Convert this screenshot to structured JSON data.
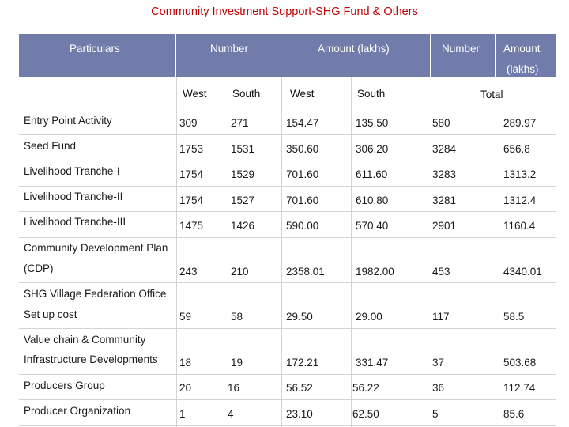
{
  "title": "Community Investment Support-SHG Fund & Others",
  "header": {
    "particulars": "Particulars",
    "number": "Number",
    "amount": "Amount (lakhs)",
    "total_number": "Number",
    "total_amount_1": "Amount",
    "total_amount_2": "(lakhs)"
  },
  "subheader": {
    "west_1": "West",
    "south_1": "South",
    "west_2": "West",
    "south_2": "South",
    "total": "Total"
  },
  "rows": [
    {
      "label1": "Entry Point Activity",
      "label2": "",
      "num_west": "309",
      "num_south": "271",
      "amt_west": "154.47",
      "amt_south": "135.50",
      "total_num": "580",
      "total_amt": "289.97"
    },
    {
      "label1": "Seed Fund",
      "label2": "",
      "num_west": "1753",
      "num_south": "1531",
      "amt_west": "350.60",
      "amt_south": "306.20",
      "total_num": "3284",
      "total_amt": "656.8"
    },
    {
      "label1": "Livelihood Tranche-I",
      "label2": "",
      "num_west": "1754",
      "num_south": "1529",
      "amt_west": "701.60",
      "amt_south": "611.60",
      "total_num": "3283",
      "total_amt": "1313.2"
    },
    {
      "label1": "Livelihood Tranche-II",
      "label2": "",
      "num_west": "1754",
      "num_south": "1527",
      "amt_west": "701.60",
      "amt_south": "610.80",
      "total_num": "3281",
      "total_amt": "1312.4"
    },
    {
      "label1": "Livelihood Tranche-III",
      "label2": "",
      "num_west": "1475",
      "num_south": "1426",
      "amt_west": "590.00",
      "amt_south": "570.40",
      "total_num": "2901",
      "total_amt": "1160.4"
    },
    {
      "label1": "Community Development Plan",
      "label2": "(CDP)",
      "num_west": "243",
      "num_south": "210",
      "amt_west": "2358.01",
      "amt_south": "1982.00",
      "total_num": "453",
      "total_amt": "4340.01"
    },
    {
      "label1": "SHG Village Federation Office",
      "label2": "Set up cost",
      "num_west": "59",
      "num_south": "58",
      "amt_west": "29.50",
      "amt_south": "29.00",
      "total_num": "117",
      "total_amt": "58.5"
    },
    {
      "label1": "Value chain & Community",
      "label2": "Infrastructure Developments",
      "num_west": "18",
      "num_south": "19",
      "amt_west": "172.21",
      "amt_south": "331.47",
      "total_num": "37",
      "total_amt": "503.68"
    },
    {
      "label1": "Producers Group",
      "label2": "",
      "num_west": "20",
      "num_south": "16",
      "amt_west": "56.52",
      "amt_south": "56.22",
      "total_num": "36",
      "total_amt": "112.74"
    },
    {
      "label1": "Producer Organization",
      "label2": "",
      "num_west": "1",
      "num_south": "4",
      "amt_west": "23.10",
      "amt_south": "62.50",
      "total_num": "5",
      "total_amt": "85.6"
    }
  ]
}
